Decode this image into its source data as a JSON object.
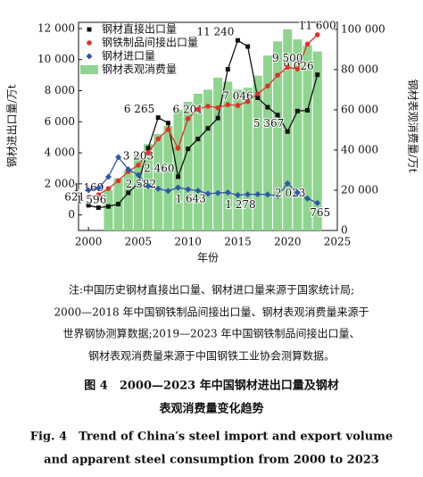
{
  "chart_data": {
    "type": "bar-line",
    "xlabel": "年份",
    "ylabel": "钢材进出口量/万t",
    "y2label": "钢材表观消费量/万t",
    "x": [
      2000,
      2001,
      2002,
      2003,
      2004,
      2005,
      2006,
      2007,
      2008,
      2009,
      2010,
      2011,
      2012,
      2013,
      2014,
      2015,
      2016,
      2017,
      2018,
      2019,
      2020,
      2021,
      2022,
      2023
    ],
    "xlim": [
      1999,
      2025
    ],
    "xticks": [
      2000,
      2005,
      2010,
      2015,
      2020,
      2025
    ],
    "ylim": [
      -1000,
      12400
    ],
    "yticks": [
      0,
      {
        "value": 2000,
        "label": "2 000"
      },
      {
        "value": 4000,
        "label": "4 000"
      },
      {
        "value": 6000,
        "label": "6 000"
      },
      {
        "value": 8000,
        "label": "8 000"
      },
      {
        "value": 10000,
        "label": "10 000"
      },
      {
        "value": 12000,
        "label": "12 000"
      }
    ],
    "y2lim": [
      0,
      103500
    ],
    "y2ticks": [
      0,
      {
        "value": 20000,
        "label": "20 000"
      },
      {
        "value": 40000,
        "label": "40 000"
      },
      {
        "value": 60000,
        "label": "60 000"
      },
      {
        "value": 80000,
        "label": "80 000"
      },
      {
        "value": 100000,
        "label": "100 000"
      }
    ],
    "legend": "upper left",
    "series": [
      {
        "name": "钢材直接出口量",
        "kind": "line",
        "marker": "square",
        "color": "#111111",
        "values": [
          621,
          470,
          545,
          700,
          1423,
          2052,
          4301,
          6265,
          5918,
          2460,
          4256,
          4888,
          5573,
          6234,
          9378,
          11240,
          10843,
          7543,
          6934,
          6429,
          5367,
          6690,
          6732,
          9026
        ],
        "value_labels": [
          "621",
          null,
          null,
          null,
          null,
          null,
          null,
          "6 265",
          null,
          "2 460",
          null,
          null,
          null,
          null,
          null,
          "11 240",
          null,
          null,
          null,
          null,
          "5 367",
          null,
          null,
          "9 026"
        ]
      },
      {
        "name": "钢铁制品间接出口量",
        "kind": "line",
        "marker": "circle",
        "color": "#e0302a",
        "values": [
          1169,
          1300,
          1700,
          2200,
          2800,
          3203,
          4000,
          4900,
          5500,
          4300,
          6201,
          6800,
          7000,
          6900,
          7100,
          7046,
          7300,
          7800,
          8300,
          9000,
          9500,
          9400,
          11000,
          11600
        ],
        "value_labels": [
          "1 169",
          null,
          null,
          null,
          null,
          "3 203",
          null,
          null,
          null,
          null,
          "6 201",
          null,
          null,
          null,
          null,
          "7 046",
          null,
          null,
          null,
          null,
          "9 500",
          null,
          null,
          "11 600"
        ]
      },
      {
        "name": "钢材进口量",
        "kind": "line",
        "marker": "diamond",
        "color": "#2f56a8",
        "values": [
          1596,
          1722,
          2449,
          3717,
          2930,
          2582,
          1851,
          1687,
          1543,
          1763,
          1643,
          1558,
          1366,
          1408,
          1443,
          1278,
          1321,
          1330,
          1317,
          1230,
          2023,
          1427,
          1057,
          765
        ],
        "value_labels": [
          "1 596",
          null,
          null,
          null,
          null,
          "2 582",
          null,
          null,
          null,
          null,
          "1 643",
          null,
          null,
          null,
          null,
          "1 278",
          null,
          null,
          null,
          null,
          "2 023",
          null,
          null,
          "765"
        ]
      },
      {
        "name": "钢材表观消费量",
        "kind": "bar",
        "axis": "y2",
        "color": "#8fd48f",
        "values": [
          null,
          null,
          20000,
          26000,
          30000,
          38000,
          43000,
          48000,
          52000,
          60000,
          64000,
          68000,
          70000,
          76000,
          74000,
          70000,
          71000,
          77000,
          87000,
          94000,
          100000,
          95000,
          92000,
          89000
        ]
      }
    ],
    "note": [
      "注:中国历史钢材直接出口量、钢材进口量来源于国家统计局;",
      "2000—2018 年中国钢铁制品间接出口量、钢材表观消费量来源于",
      "世界钢协测算数据;2019—2023 年中国钢铁制品间接出口量、",
      "钢材表观消费量来源于中国钢铁工业协会测算数据。"
    ],
    "caption_cn": [
      "图 4　2000—2023 年中国钢材进出口量及钢材",
      "表观消费量变化趋势"
    ],
    "caption_en": [
      "Fig. 4　Trend of China′s steel import and export volume",
      "and apparent steel consumption from 2000 to 2023"
    ]
  }
}
